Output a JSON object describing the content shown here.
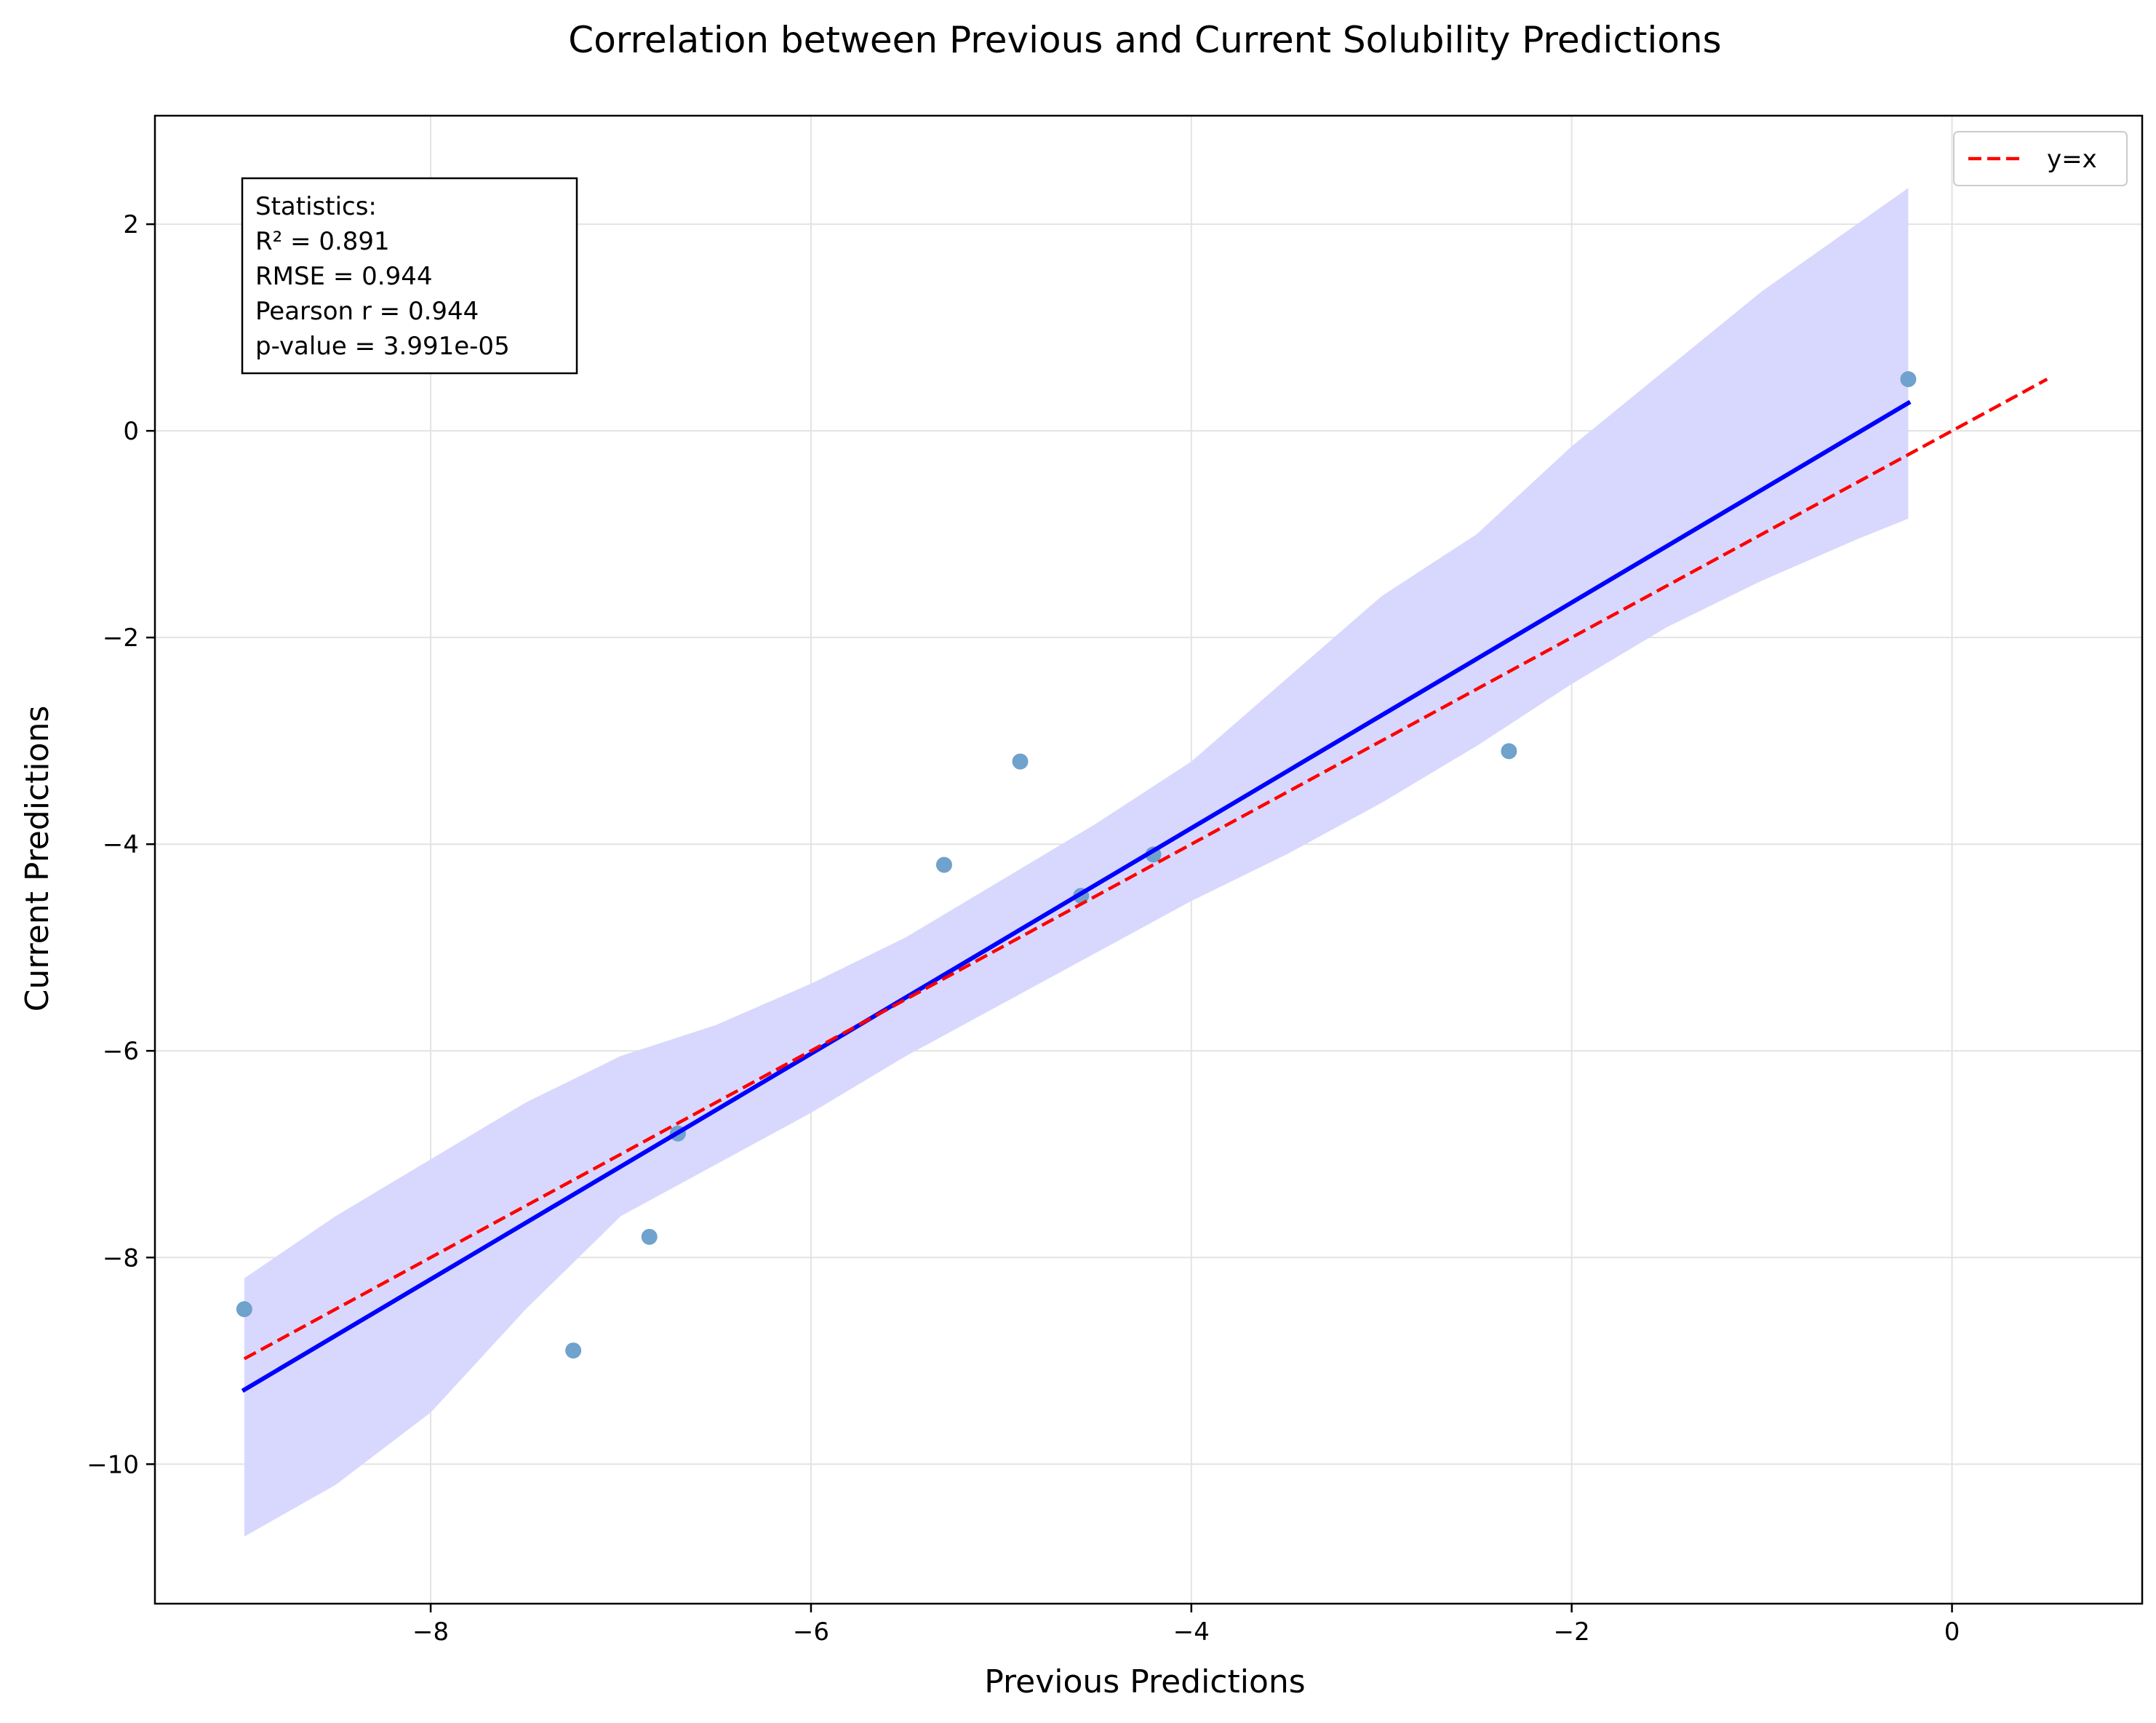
{
  "chart_data": {
    "type": "scatter",
    "title": "Correlation between Previous and Current Solubility Predictions",
    "xlabel": "Previous Predictions",
    "ylabel": "Current Predictions",
    "xlim": [
      -9.45,
      1.0
    ],
    "ylim": [
      -11.35,
      3.05
    ],
    "xticks": [
      -8,
      -6,
      -4,
      -2,
      0
    ],
    "yticks": [
      -10,
      -8,
      -6,
      -4,
      -2,
      0,
      2
    ],
    "xtick_labels": [
      "−8",
      "−6",
      "−4",
      "−2",
      "0"
    ],
    "ytick_labels": [
      "−10",
      "−8",
      "−6",
      "−4",
      "−2",
      "0",
      "2"
    ],
    "grid": true,
    "points": [
      {
        "x": -8.98,
        "y": -8.5
      },
      {
        "x": -7.25,
        "y": -8.9
      },
      {
        "x": -6.85,
        "y": -7.8
      },
      {
        "x": -6.7,
        "y": -6.8
      },
      {
        "x": -5.3,
        "y": -4.2
      },
      {
        "x": -4.9,
        "y": -3.2
      },
      {
        "x": -4.58,
        "y": -4.5
      },
      {
        "x": -4.2,
        "y": -4.1
      },
      {
        "x": -2.33,
        "y": -3.1
      },
      {
        "x": -0.23,
        "y": 0.5
      }
    ],
    "point_color": "#6fa2cc",
    "regression_line": {
      "x": [
        -8.98,
        -0.23
      ],
      "y": [
        -9.28,
        0.27
      ],
      "color": "#0000ff"
    },
    "identity_line": {
      "name": "y=x",
      "x": [
        -8.98,
        0.5
      ],
      "y": [
        -8.98,
        0.5
      ],
      "color": "#ff0000"
    },
    "confidence_band": {
      "color": "#d8d8fe",
      "x": [
        -8.98,
        -8.5,
        -8.0,
        -7.5,
        -7.0,
        -6.5,
        -6.0,
        -5.5,
        -5.0,
        -4.5,
        -4.0,
        -3.5,
        -3.0,
        -2.5,
        -2.0,
        -1.5,
        -1.0,
        -0.5,
        -0.23
      ],
      "upper": [
        -8.2,
        -7.6,
        -7.05,
        -6.5,
        -6.05,
        -5.75,
        -5.35,
        -4.9,
        -4.35,
        -3.8,
        -3.2,
        -2.4,
        -1.6,
        -1.0,
        -0.15,
        0.6,
        1.35,
        2.0,
        2.35
      ],
      "lower": [
        -10.7,
        -10.2,
        -9.5,
        -8.5,
        -7.6,
        -7.1,
        -6.6,
        -6.05,
        -5.55,
        -5.05,
        -4.55,
        -4.1,
        -3.6,
        -3.05,
        -2.45,
        -1.9,
        -1.45,
        -1.05,
        -0.85
      ]
    },
    "legend": {
      "position": "top-right",
      "entries": [
        "y=x"
      ]
    },
    "stats_box": {
      "position": "top-left",
      "lines": [
        "Statistics:",
        "R² = 0.891",
        "RMSE = 0.944",
        "Pearson r = 0.944",
        "p-value = 3.991e-05"
      ]
    }
  }
}
